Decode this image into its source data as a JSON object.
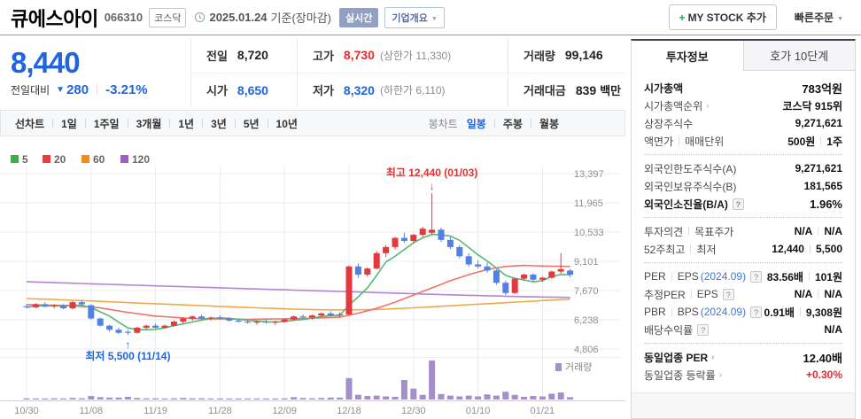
{
  "header": {
    "title": "큐에스아이",
    "code": "066310",
    "market": "코스닥",
    "date": "2025.01.24",
    "date_suffix": "기준(장마감)",
    "realtime_label": "실시간",
    "overview_label": "기업개요",
    "my_stock_label": "MY STOCK 추가",
    "quick_order_label": "빠른주문"
  },
  "summary": {
    "price": "8,440",
    "change_label": "전일대비",
    "change_value": "280",
    "change_percent": "-3.21%",
    "direction": "down",
    "table": {
      "rows": [
        [
          {
            "label": "전일",
            "value": "8,720"
          },
          {
            "label": "고가",
            "value": "8,730",
            "color": "red",
            "extra": "(상한가 11,330)"
          },
          {
            "label": "거래량",
            "value": "99,146"
          }
        ],
        [
          {
            "label": "시가",
            "value": "8,650",
            "color": "blue"
          },
          {
            "label": "저가",
            "value": "8,320",
            "color": "blue",
            "extra": "(하한가 6,110)"
          },
          {
            "label": "거래대금",
            "value": "839",
            "unit": "백만"
          }
        ]
      ]
    }
  },
  "chart_tabs": {
    "left": [
      "선차트",
      "1일",
      "1주일",
      "3개월",
      "1년",
      "3년",
      "5년",
      "10년"
    ],
    "right_label": "봉차트",
    "right": [
      {
        "label": "일봉",
        "active": true
      },
      {
        "label": "주봉",
        "active": false
      },
      {
        "label": "월봉",
        "active": false
      }
    ]
  },
  "panel": {
    "tabs": [
      {
        "label": "투자정보",
        "active": true
      },
      {
        "label": "호가 10단계",
        "active": false
      }
    ],
    "groups": [
      [
        {
          "label": [
            {
              "t": "시가총액"
            }
          ],
          "bold": true,
          "value": [
            {
              "t": "783억원"
            }
          ]
        },
        {
          "label": [
            {
              "t": "시가총액순위"
            }
          ],
          "arrow": true,
          "value": [
            {
              "t": "코스닥 915위"
            }
          ]
        },
        {
          "label": [
            {
              "t": "상장주식수"
            }
          ],
          "value": [
            {
              "t": "9,271,621"
            }
          ]
        },
        {
          "label": [
            {
              "t": "액면가"
            },
            {
              "t": "매매단위"
            }
          ],
          "value": [
            {
              "t": "500원"
            },
            {
              "t": "1주"
            }
          ]
        }
      ],
      [
        {
          "label": [
            {
              "t": "외국인한도주식수(A)"
            }
          ],
          "value": [
            {
              "t": "9,271,621"
            }
          ]
        },
        {
          "label": [
            {
              "t": "외국인보유주식수(B)"
            }
          ],
          "value": [
            {
              "t": "181,565"
            }
          ]
        },
        {
          "label": [
            {
              "t": "외국인소진율(B/A)"
            }
          ],
          "help": true,
          "bold": true,
          "value": [
            {
              "t": "1.96%"
            }
          ]
        }
      ],
      [
        {
          "label": [
            {
              "t": "투자의견"
            },
            {
              "t": "목표주가"
            }
          ],
          "value": [
            {
              "t": "N/A"
            },
            {
              "t": "N/A"
            }
          ]
        },
        {
          "label": [
            {
              "t": "52주최고"
            },
            {
              "t": "최저"
            }
          ],
          "value": [
            {
              "t": "12,440"
            },
            {
              "t": "5,500"
            }
          ]
        }
      ],
      [
        {
          "label": [
            {
              "t": "PER"
            },
            {
              "t": "EPS",
              "date": "(2024.09)"
            }
          ],
          "help": true,
          "value": [
            {
              "t": "83.56배"
            },
            {
              "t": "101원"
            }
          ]
        },
        {
          "label": [
            {
              "t": "추정PER"
            },
            {
              "t": "EPS"
            }
          ],
          "help": true,
          "value": [
            {
              "t": "N/A"
            },
            {
              "t": "N/A"
            }
          ]
        },
        {
          "label": [
            {
              "t": "PBR"
            },
            {
              "t": "BPS",
              "date": "(2024.09)"
            }
          ],
          "help": true,
          "value": [
            {
              "t": "0.91배"
            },
            {
              "t": "9,308원"
            }
          ]
        },
        {
          "label": [
            {
              "t": "배당수익률"
            }
          ],
          "help": true,
          "value": [
            {
              "t": "N/A"
            }
          ]
        }
      ],
      [
        {
          "label": [
            {
              "t": "동일업종 PER"
            }
          ],
          "arrow": true,
          "bold": true,
          "value": [
            {
              "t": "12.40배"
            }
          ]
        },
        {
          "label": [
            {
              "t": "동일업종 등락률"
            }
          ],
          "arrow": true,
          "value": [
            {
              "t": "+0.30%",
              "color": "red"
            }
          ]
        }
      ]
    ]
  },
  "chart_data": {
    "type": "candlestick",
    "title": "큐에스아이 일봉 차트 (이동평균 5/20/60/120, 거래량)",
    "legend": [
      {
        "label": "5",
        "color": "#3fae49"
      },
      {
        "label": "20",
        "color": "#ea3d3f"
      },
      {
        "label": "60",
        "color": "#f08c1b"
      },
      {
        "label": "120",
        "color": "#9d5fc5"
      }
    ],
    "y_axis": {
      "ticks": [
        {
          "v": 13397,
          "label": "13,397"
        },
        {
          "v": 11965,
          "label": "11,965"
        },
        {
          "v": 10533,
          "label": "10,533"
        },
        {
          "v": 9101,
          "label": "9,101"
        },
        {
          "v": 7670,
          "label": "7,670"
        },
        {
          "v": 6238,
          "label": "6,238"
        },
        {
          "v": 4806,
          "label": "4,806"
        }
      ]
    },
    "dates": [
      "10/30",
      "10/31",
      "11/01",
      "11/04",
      "11/05",
      "11/06",
      "11/07",
      "11/08",
      "11/11",
      "11/12",
      "11/13",
      "11/14",
      "11/15",
      "11/18",
      "11/19",
      "11/20",
      "11/21",
      "11/22",
      "11/25",
      "11/26",
      "11/27",
      "11/28",
      "11/29",
      "12/02",
      "12/03",
      "12/04",
      "12/05",
      "12/06",
      "12/09",
      "12/10",
      "12/11",
      "12/12",
      "12/13",
      "12/16",
      "12/17",
      "12/18",
      "12/19",
      "12/20",
      "12/23",
      "12/24",
      "12/26",
      "12/27",
      "12/30",
      "01/02",
      "01/03",
      "01/06",
      "01/07",
      "01/08",
      "01/09",
      "01/10",
      "01/13",
      "01/14",
      "01/15",
      "01/16",
      "01/17",
      "01/20",
      "01/21",
      "01/22",
      "01/23",
      "01/24"
    ],
    "x_axis": {
      "tick_indices": [
        0,
        7,
        14,
        21,
        28,
        35,
        42,
        49,
        56
      ]
    },
    "candles": [
      [
        6900,
        7000,
        6800,
        6850
      ],
      [
        6850,
        7050,
        6800,
        7000
      ],
      [
        7000,
        7100,
        6850,
        6900
      ],
      [
        6900,
        7000,
        6800,
        6950
      ],
      [
        6950,
        7000,
        6750,
        6800
      ],
      [
        6800,
        7150,
        6750,
        7100
      ],
      [
        7100,
        7200,
        6950,
        7000
      ],
      [
        6950,
        7000,
        6250,
        6300
      ],
      [
        6300,
        6350,
        5900,
        5950
      ],
      [
        5950,
        6000,
        5650,
        5750
      ],
      [
        5750,
        5850,
        5550,
        5600
      ],
      [
        5650,
        5750,
        5500,
        5600
      ],
      [
        5600,
        5900,
        5560,
        5850
      ],
      [
        5850,
        6000,
        5750,
        5950
      ],
      [
        5950,
        6050,
        5800,
        5850
      ],
      [
        5850,
        6000,
        5800,
        5950
      ],
      [
        5950,
        6200,
        5900,
        6150
      ],
      [
        6150,
        6350,
        6050,
        6300
      ],
      [
        6300,
        6450,
        6200,
        6400
      ],
      [
        6400,
        6500,
        6250,
        6300
      ],
      [
        6300,
        6400,
        6200,
        6350
      ],
      [
        6350,
        6450,
        6250,
        6300
      ],
      [
        6300,
        6350,
        6150,
        6200
      ],
      [
        6200,
        6300,
        6100,
        6150
      ],
      [
        6150,
        6250,
        6050,
        6100
      ],
      [
        6100,
        6200,
        6000,
        6150
      ],
      [
        6150,
        6250,
        6050,
        6100
      ],
      [
        6100,
        6200,
        6000,
        6150
      ],
      [
        6150,
        6300,
        6100,
        6250
      ],
      [
        6250,
        6450,
        6200,
        6400
      ],
      [
        6400,
        6500,
        6300,
        6350
      ],
      [
        6350,
        6500,
        6250,
        6450
      ],
      [
        6450,
        6600,
        6400,
        6550
      ],
      [
        6550,
        6650,
        6400,
        6450
      ],
      [
        6450,
        6600,
        6350,
        6500
      ],
      [
        6500,
        8900,
        6450,
        8850
      ],
      [
        8850,
        9000,
        8300,
        8450
      ],
      [
        8450,
        8800,
        8350,
        8750
      ],
      [
        8750,
        9600,
        8700,
        9500
      ],
      [
        9500,
        9900,
        9300,
        9800
      ],
      [
        9800,
        10300,
        9700,
        10250
      ],
      [
        10250,
        10500,
        10000,
        10100
      ],
      [
        10100,
        10450,
        10000,
        10400
      ],
      [
        10400,
        10800,
        10300,
        10700
      ],
      [
        10500,
        12440,
        10400,
        10650
      ],
      [
        10650,
        10750,
        10050,
        10150
      ],
      [
        10150,
        10300,
        9700,
        9800
      ],
      [
        9800,
        9900,
        9250,
        9350
      ],
      [
        9350,
        9500,
        8850,
        8950
      ],
      [
        8950,
        9150,
        8750,
        8850
      ],
      [
        8850,
        9050,
        8550,
        8650
      ],
      [
        8650,
        8700,
        7950,
        8050
      ],
      [
        8050,
        8150,
        7450,
        7550
      ],
      [
        7550,
        8300,
        7500,
        8250
      ],
      [
        8250,
        8500,
        8150,
        8450
      ],
      [
        8450,
        8500,
        8100,
        8200
      ],
      [
        8200,
        8350,
        8100,
        8300
      ],
      [
        8300,
        8650,
        8250,
        8600
      ],
      [
        8600,
        9500,
        8500,
        8720
      ],
      [
        8650,
        8730,
        8320,
        8440
      ]
    ],
    "volumes": [
      3,
      2,
      2,
      3,
      2,
      4,
      3,
      9,
      6,
      5,
      5,
      7,
      4,
      3,
      3,
      2,
      3,
      4,
      3,
      3,
      2,
      2,
      2,
      2,
      2,
      2,
      2,
      2,
      3,
      6,
      4,
      3,
      4,
      5,
      5,
      55,
      12,
      9,
      10,
      8,
      7,
      50,
      28,
      12,
      100,
      14,
      10,
      8,
      10,
      8,
      13,
      10,
      20,
      12,
      7,
      9,
      8,
      15,
      18,
      6
    ],
    "volume_label": "거래량",
    "colors": {
      "up": "#e5383c",
      "down": "#4f81e8",
      "volume": "#a38fcb",
      "ma5_line": "#56b977",
      "ma20_line": "#f0726c",
      "ma60_line": "#f5a849",
      "ma120_line": "#b386d3",
      "grid": "#ececec",
      "axis_text": "#8f8f8f"
    },
    "ma_keypoints": {
      "ma20": [
        [
          0,
          6980
        ],
        [
          5,
          6930
        ],
        [
          8,
          6820
        ],
        [
          11,
          6600
        ],
        [
          14,
          6420
        ],
        [
          18,
          6300
        ],
        [
          24,
          6260
        ],
        [
          30,
          6300
        ],
        [
          34,
          6370
        ],
        [
          36,
          6560
        ],
        [
          38,
          6800
        ],
        [
          40,
          7100
        ],
        [
          42,
          7450
        ],
        [
          44,
          7800
        ],
        [
          46,
          8150
        ],
        [
          48,
          8450
        ],
        [
          50,
          8700
        ],
        [
          52,
          8850
        ],
        [
          54,
          8900
        ],
        [
          56,
          8870
        ],
        [
          59,
          8850
        ]
      ],
      "ma60": [
        [
          0,
          7280
        ],
        [
          6,
          7180
        ],
        [
          12,
          7060
        ],
        [
          18,
          6950
        ],
        [
          24,
          6840
        ],
        [
          29,
          6760
        ],
        [
          33,
          6720
        ],
        [
          37,
          6730
        ],
        [
          41,
          6800
        ],
        [
          45,
          6900
        ],
        [
          49,
          7000
        ],
        [
          53,
          7100
        ],
        [
          56,
          7180
        ],
        [
          59,
          7250
        ]
      ],
      "ma120": [
        [
          0,
          8100
        ],
        [
          12,
          7930
        ],
        [
          24,
          7760
        ],
        [
          36,
          7600
        ],
        [
          46,
          7460
        ],
        [
          53,
          7380
        ],
        [
          59,
          7330
        ]
      ]
    },
    "annotations": [
      {
        "type": "high",
        "index": 44,
        "value": 12440,
        "text": "최고 12,440 (01/03)",
        "color": "#e03131"
      },
      {
        "type": "low",
        "index": 11,
        "value": 5500,
        "text": "최저 5,500 (11/14)",
        "color": "#2065dd"
      }
    ]
  }
}
